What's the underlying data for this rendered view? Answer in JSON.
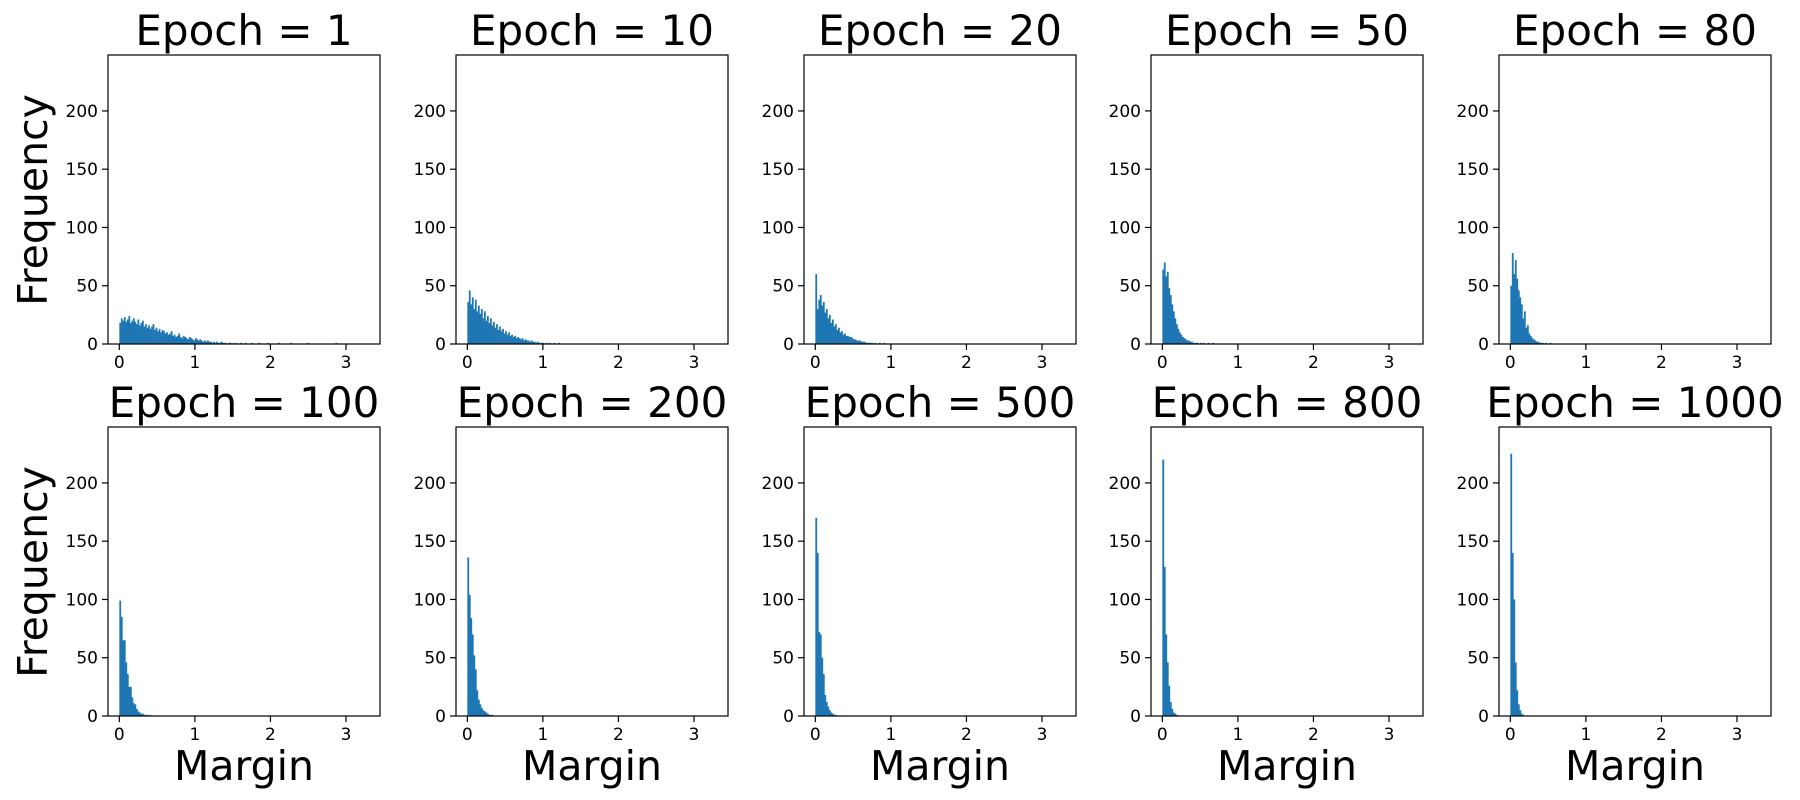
{
  "figure": {
    "ylabel": "Frequency",
    "xlabel": "Margin",
    "bar_color": "#1f77b4",
    "xlim": [
      -0.15,
      3.45
    ],
    "ylim": [
      0,
      248
    ],
    "xticks": [
      0,
      1,
      2,
      3
    ],
    "yticks": [
      0,
      50,
      100,
      150,
      200
    ]
  },
  "chart_data": [
    {
      "type": "bar",
      "title": "Epoch = 1",
      "bin_width": 0.02,
      "values": [
        18,
        22,
        20,
        23,
        19,
        21,
        24,
        18,
        20,
        22,
        19,
        17,
        21,
        16,
        18,
        20,
        15,
        17,
        14,
        16,
        13,
        15,
        17,
        12,
        14,
        11,
        13,
        10,
        12,
        11,
        9,
        10,
        8,
        9,
        11,
        7,
        8,
        6,
        7,
        9,
        6,
        5,
        7,
        6,
        5,
        4,
        6,
        5,
        4,
        3,
        5,
        4,
        3,
        4,
        3,
        2,
        3,
        2,
        3,
        2,
        2,
        1,
        2,
        1,
        2,
        1,
        1,
        2,
        1,
        1,
        1,
        0,
        1,
        1,
        0,
        1,
        0,
        1,
        0,
        0,
        1,
        0,
        0,
        1,
        0,
        0,
        0,
        1,
        0,
        0,
        0,
        0,
        1,
        0,
        0,
        0,
        0,
        0,
        1,
        0,
        0,
        0,
        0,
        0,
        0,
        1,
        0,
        0,
        0,
        0,
        0,
        0,
        0,
        1,
        0,
        0,
        0,
        0,
        0,
        0,
        0,
        0,
        0,
        0,
        1,
        0,
        0,
        0,
        0,
        0,
        0,
        0,
        0,
        0,
        0,
        0,
        0,
        0,
        0,
        0,
        0,
        0,
        0,
        1
      ]
    },
    {
      "type": "bar",
      "title": "Epoch = 10",
      "bin_width": 0.02,
      "values": [
        36,
        46,
        34,
        40,
        30,
        38,
        28,
        33,
        26,
        30,
        22,
        28,
        20,
        24,
        18,
        22,
        16,
        19,
        14,
        17,
        12,
        15,
        11,
        13,
        9,
        11,
        8,
        10,
        7,
        8,
        6,
        7,
        5,
        6,
        5,
        4,
        5,
        3,
        4,
        3,
        3,
        2,
        3,
        2,
        2,
        1,
        2,
        1,
        1,
        1,
        1,
        0,
        1,
        0,
        1,
        0,
        0,
        1,
        0,
        0,
        1
      ]
    },
    {
      "type": "bar",
      "title": "Epoch = 20",
      "bin_width": 0.02,
      "values": [
        60,
        30,
        38,
        42,
        33,
        36,
        27,
        30,
        22,
        25,
        18,
        21,
        15,
        17,
        12,
        14,
        10,
        11,
        8,
        9,
        7,
        7,
        6,
        6,
        5,
        4,
        4,
        3,
        3,
        3,
        2,
        2,
        2,
        1,
        1,
        1,
        1,
        1,
        0,
        1,
        0,
        0,
        1,
        0,
        0,
        1
      ]
    },
    {
      "type": "bar",
      "title": "Epoch = 50",
      "bin_width": 0.02,
      "values": [
        64,
        70,
        58,
        62,
        48,
        42,
        34,
        28,
        22,
        17,
        13,
        10,
        8,
        6,
        5,
        4,
        3,
        3,
        2,
        2,
        1,
        1,
        1,
        1,
        0,
        1,
        0,
        1,
        0,
        0,
        1,
        0,
        0,
        1
      ]
    },
    {
      "type": "bar",
      "title": "Epoch = 80",
      "bin_width": 0.02,
      "values": [
        50,
        78,
        60,
        72,
        56,
        46,
        40,
        34,
        22,
        28,
        14,
        16,
        9,
        7,
        5,
        4,
        3,
        2,
        2,
        1,
        1,
        1,
        0,
        1,
        0,
        0,
        1
      ]
    },
    {
      "type": "bar",
      "title": "Epoch = 100",
      "bin_width": 0.02,
      "values": [
        99,
        85,
        65,
        65,
        46,
        36,
        25,
        25,
        16,
        11,
        10,
        6,
        4,
        3,
        2,
        2,
        1,
        1,
        1,
        0,
        1
      ]
    },
    {
      "type": "bar",
      "title": "Epoch = 200",
      "bin_width": 0.02,
      "values": [
        136,
        104,
        84,
        70,
        52,
        40,
        22,
        14,
        10,
        7,
        5,
        4,
        3,
        2,
        1,
        1,
        1
      ]
    },
    {
      "type": "bar",
      "title": "Epoch = 500",
      "bin_width": 0.02,
      "values": [
        170,
        140,
        72,
        70,
        50,
        36,
        18,
        12,
        8,
        5,
        3,
        2,
        1,
        1
      ]
    },
    {
      "type": "bar",
      "title": "Epoch = 800",
      "bin_width": 0.02,
      "values": [
        220,
        128,
        70,
        46,
        26,
        12,
        6,
        3,
        2,
        1
      ]
    },
    {
      "type": "bar",
      "title": "Epoch = 1000",
      "bin_width": 0.02,
      "values": [
        225,
        140,
        100,
        46,
        22,
        10,
        5,
        2,
        1
      ]
    }
  ]
}
